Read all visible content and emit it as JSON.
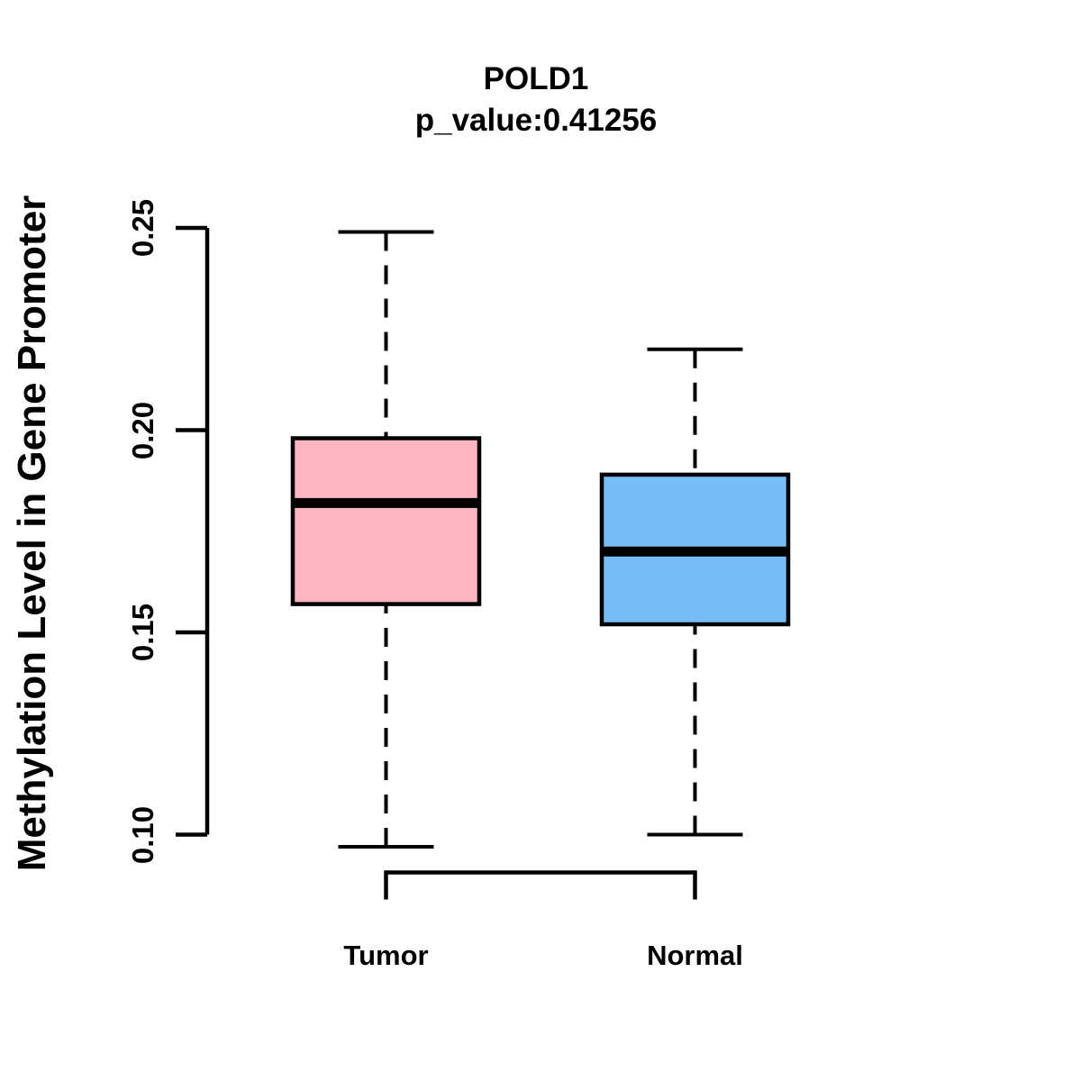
{
  "title": {
    "gene": "POLD1",
    "subtitle": "p_value:0.41256",
    "p_value": "0.41256"
  },
  "axes": {
    "y_label": "Methylation Level in Gene Promoter",
    "y_tick_labels": [
      "0.25",
      "0.20",
      "0.15",
      "0.10"
    ],
    "x_category_labels": [
      "Tumor",
      "Normal"
    ]
  },
  "chart_data": {
    "type": "boxplot",
    "title": "POLD1",
    "subtitle": "p_value:0.41256",
    "ylabel": "Methylation Level in Gene Promoter",
    "xlabel": "",
    "ylim": [
      0.1,
      0.25
    ],
    "y_ticks": [
      {
        "label": "0.25",
        "value": 0.25
      },
      {
        "label": "0.20",
        "value": 0.2
      },
      {
        "label": "0.15",
        "value": 0.15
      },
      {
        "label": "0.10",
        "value": 0.1
      }
    ],
    "categories": [
      "Tumor",
      "Normal"
    ],
    "series": [
      {
        "name": "Tumor",
        "fill_color": "#FFB6C1",
        "whisker_low": 0.097,
        "q1": 0.157,
        "median": 0.182,
        "q3": 0.198,
        "whisker_high": 0.249
      },
      {
        "name": "Normal",
        "fill_color": "#74BDF6",
        "whisker_low": 0.1,
        "q1": 0.152,
        "median": 0.17,
        "q3": 0.189,
        "whisker_high": 0.22
      }
    ],
    "grid": false,
    "legend": "none",
    "line_color": "#000000",
    "background_color": "#FFFFFF"
  }
}
